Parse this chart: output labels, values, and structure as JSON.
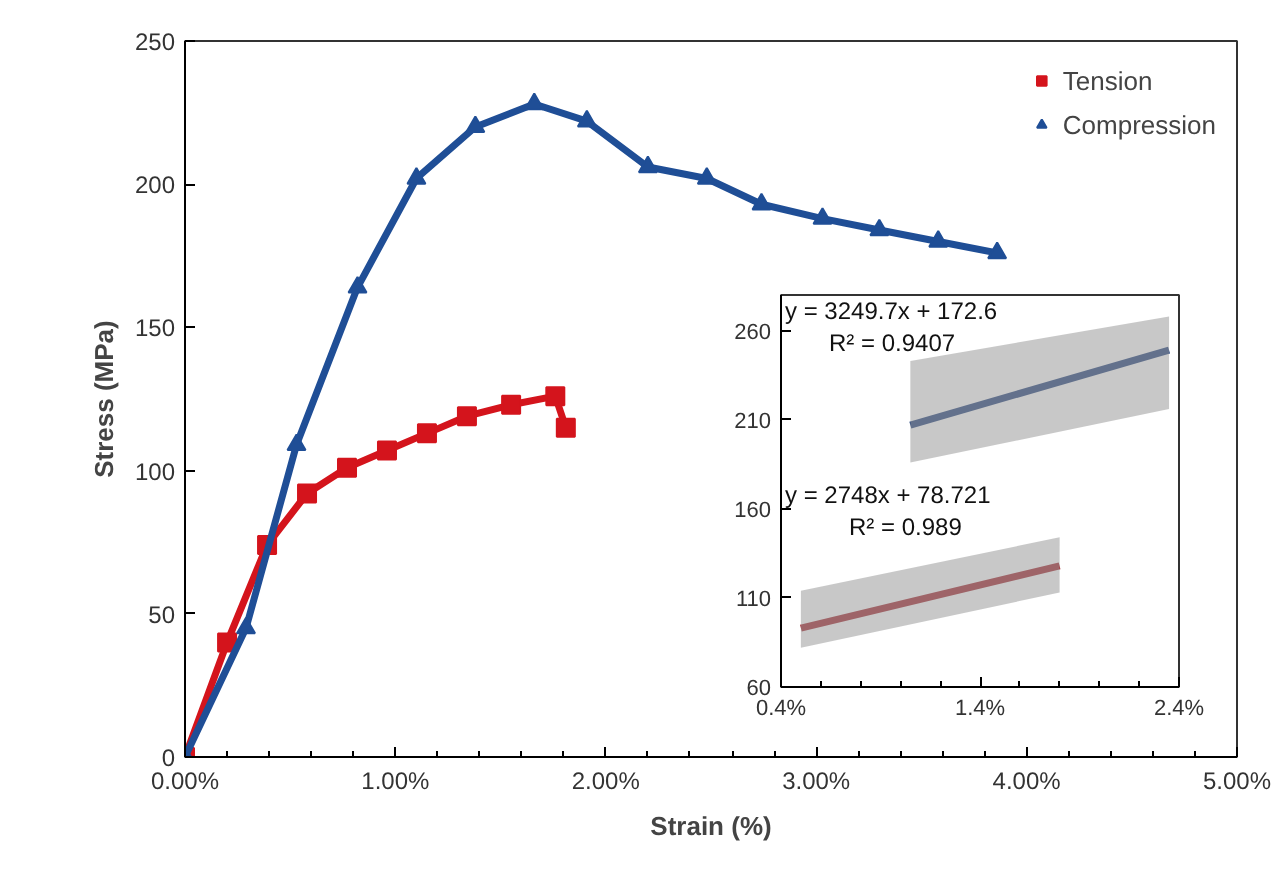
{
  "chart_data": [
    {
      "type": "line",
      "xlabel": "Strain (%)",
      "ylabel": "Stress (MPa)",
      "xlim": [
        0,
        5
      ],
      "xticks": [
        {
          "value": 0,
          "label": "0.00%"
        },
        {
          "value": 1,
          "label": "1.00%"
        },
        {
          "value": 2,
          "label": "2.00%"
        },
        {
          "value": 3,
          "label": "3.00%"
        },
        {
          "value": 4,
          "label": "4.00%"
        },
        {
          "value": 5,
          "label": "5.00%"
        }
      ],
      "ylim": [
        0,
        250
      ],
      "yticks": [
        0,
        50,
        100,
        150,
        200,
        250
      ],
      "grid": false,
      "legend": "top right",
      "series": [
        {
          "name": "Tension",
          "color": "#d4141c",
          "marker": "square",
          "x": [
            0,
            0.2,
            0.39,
            0.58,
            0.77,
            0.96,
            1.15,
            1.34,
            1.55,
            1.76,
            1.81
          ],
          "values": [
            0,
            40,
            74,
            92,
            101,
            107,
            113,
            119,
            123,
            126,
            115
          ]
        },
        {
          "name": "Compression",
          "color": "#1f4e96",
          "marker": "triangle",
          "x": [
            0,
            0.29,
            0.53,
            0.82,
            1.1,
            1.38,
            1.66,
            1.91,
            2.2,
            2.48,
            2.74,
            3.03,
            3.3,
            3.58,
            3.86
          ],
          "values": [
            0,
            45,
            109,
            164,
            202,
            220,
            228,
            222,
            206,
            202,
            193,
            188,
            184,
            180,
            176
          ]
        }
      ]
    },
    {
      "type": "line",
      "xlim": [
        0.4,
        2.4
      ],
      "xticks": [
        {
          "value": 0.4,
          "label": "0.4%"
        },
        {
          "value": 1.4,
          "label": "1.4%"
        },
        {
          "value": 2.4,
          "label": "2.4%"
        }
      ],
      "ylim": [
        60,
        280
      ],
      "yticks": [
        60,
        110,
        160,
        210,
        260
      ],
      "grid": false,
      "legend": false,
      "series": [
        {
          "color": "#1f3f7a",
          "x": [
            1.05,
            2.35
          ],
          "values": [
            207,
            249
          ],
          "lower": [
            186,
            216
          ],
          "upper": [
            243,
            268
          ]
        },
        {
          "color": "#a3232a",
          "x": [
            0.5,
            1.8
          ],
          "values": [
            93,
            128
          ],
          "lower": [
            82,
            113
          ],
          "upper": [
            114,
            144
          ]
        }
      ],
      "annotations": [
        "y = 3249.7x + 172.6",
        "R² = 0.9407",
        "y = 2748x + 78.721",
        "R² = 0.989"
      ]
    }
  ]
}
